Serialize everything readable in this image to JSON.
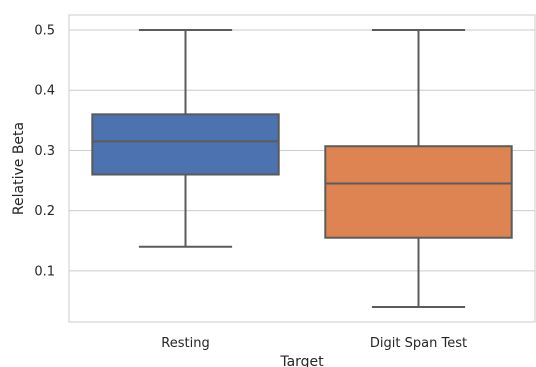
{
  "chart_data": {
    "type": "box",
    "xlabel": "Target",
    "ylabel": "Relative Beta",
    "categories": [
      "Resting",
      "Digit Span Test"
    ],
    "boxes": [
      {
        "category": "Resting",
        "whisker_low": 0.14,
        "q1": 0.26,
        "median": 0.315,
        "q3": 0.36,
        "whisker_high": 0.5,
        "color": "#4c72b0"
      },
      {
        "category": "Digit Span Test",
        "whisker_low": 0.04,
        "q1": 0.155,
        "median": 0.245,
        "q3": 0.307,
        "whisker_high": 0.5,
        "color": "#dd8452"
      }
    ],
    "yticks": [
      0.1,
      0.2,
      0.3,
      0.4,
      0.5
    ],
    "ytick_labels": [
      "0.1",
      "0.2",
      "0.3",
      "0.4",
      "0.5"
    ],
    "ylim": [
      0.015,
      0.525
    ],
    "grid": "horizontal"
  }
}
